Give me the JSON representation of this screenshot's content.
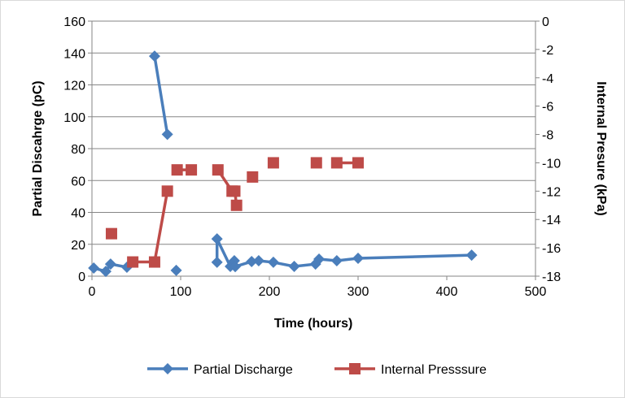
{
  "chart_data": {
    "type": "line",
    "xlabel": "Time (hours)",
    "ylabel": "Partial Discahrge (pC)",
    "y2label": "Internal Presure (kPa)",
    "xlim": [
      0,
      500
    ],
    "ylim": [
      0,
      160
    ],
    "y2lim": [
      -18,
      0
    ],
    "xticks": [
      0,
      100,
      200,
      300,
      400,
      500
    ],
    "yticks": [
      0,
      20,
      40,
      60,
      80,
      100,
      120,
      140,
      160
    ],
    "y2ticks": [
      0,
      -2,
      -4,
      -6,
      -8,
      -10,
      -12,
      -14,
      -16,
      -18
    ],
    "grid": "horizontal",
    "legend_position": "bottom",
    "series": [
      {
        "name": "Partial Discharge",
        "axis": "left",
        "color": "#4a7ebb",
        "marker": "diamond",
        "segments": [
          [
            [
              2,
              5.1
            ],
            [
              15.6,
              3
            ],
            [
              21,
              7.6
            ],
            [
              39.4,
              5.6
            ]
          ],
          [
            [
              70.6,
              138
            ],
            [
              85,
              89
            ]
          ],
          [
            [
              95,
              3.6
            ]
          ],
          [
            [
              141,
              8.7
            ],
            [
              141,
              23.4
            ],
            [
              156,
              6.1
            ],
            [
              160.5,
              9.7
            ],
            [
              161.5,
              6
            ],
            [
              180,
              9.2
            ],
            [
              188,
              9.7
            ],
            [
              204.5,
              8.7
            ],
            [
              228,
              6.1
            ],
            [
              252,
              7.6
            ],
            [
              256,
              10.7
            ],
            [
              276,
              9.7
            ],
            [
              300,
              11.2
            ],
            [
              428,
              13.2
            ]
          ]
        ]
      },
      {
        "name": "Internal Presssure",
        "axis": "right",
        "color": "#be4b48",
        "marker": "square",
        "segments": [
          [
            [
              22,
              -15
            ]
          ],
          [
            [
              46,
              -17
            ],
            [
              70.6,
              -17
            ],
            [
              85,
              -12
            ]
          ],
          [
            [
              96,
              -10.5
            ],
            [
              112,
              -10.5
            ]
          ],
          [
            [
              142,
              -10.5
            ],
            [
              158,
              -12
            ],
            [
              161,
              -12
            ],
            [
              163,
              -13
            ]
          ],
          [
            [
              181,
              -11
            ]
          ],
          [
            [
              204.5,
              -10
            ]
          ],
          [
            [
              253,
              -10
            ]
          ],
          [
            [
              276,
              -10
            ],
            [
              300,
              -10
            ]
          ]
        ]
      }
    ]
  }
}
